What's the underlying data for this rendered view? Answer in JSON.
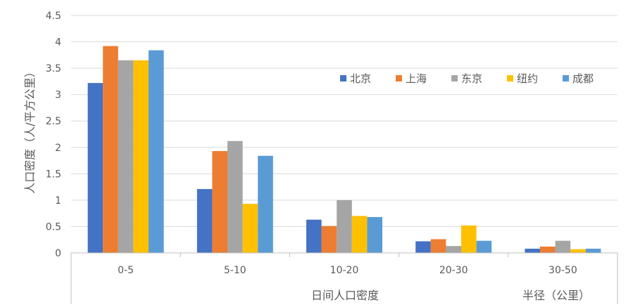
{
  "chart_data": {
    "type": "bar",
    "categories": [
      "0-5",
      "5-10",
      "10-20",
      "20-30",
      "30-50"
    ],
    "series": [
      {
        "name": "北京",
        "color": "#4472C4",
        "values": [
          3.22,
          1.21,
          0.63,
          0.22,
          0.08
        ]
      },
      {
        "name": "上海",
        "color": "#ED7D31",
        "values": [
          3.92,
          1.93,
          0.51,
          0.26,
          0.12
        ]
      },
      {
        "name": "东京",
        "color": "#A5A5A5",
        "values": [
          3.65,
          2.12,
          1.0,
          0.13,
          0.23
        ]
      },
      {
        "name": "纽约",
        "color": "#FFC000",
        "values": [
          3.65,
          0.93,
          0.7,
          0.52,
          0.07
        ]
      },
      {
        "name": "成都",
        "color": "#5B9BD5",
        "values": [
          3.84,
          1.84,
          0.68,
          0.23,
          0.08
        ]
      }
    ],
    "y_ticks": [
      "0",
      "0.5",
      "1",
      "1.5",
      "2",
      "2.5",
      "3",
      "3.5",
      "4",
      "4.5"
    ],
    "ylim": [
      0,
      4.5
    ],
    "ylabel": "人口密度（人/平方公里）",
    "xlabel": "日间人口密度",
    "xlabel_right": "半径（公里）",
    "grid": true,
    "legend_position": "inside-top-right"
  }
}
